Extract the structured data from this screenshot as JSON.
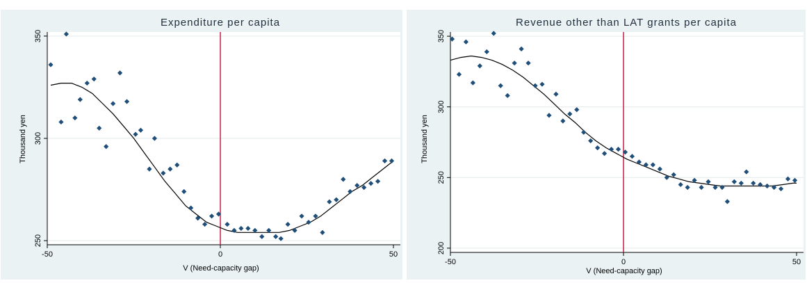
{
  "chart_data": [
    {
      "type": "scatter",
      "title": "Expenditure per capita",
      "xlabel": "V (Need-capacity gap)",
      "ylabel": "Thousand yen",
      "xlim": [
        -50,
        50
      ],
      "ylim": [
        248,
        352
      ],
      "xticks": [
        -50,
        0,
        50
      ],
      "yticks": [
        250,
        300,
        350
      ],
      "grid": true,
      "vertical_line_x": 0,
      "colors": {
        "points": "#1f4e79",
        "fit_line": "#000000",
        "vertical_line": "#c0103a",
        "background": "#eaf2f3"
      },
      "points": [
        {
          "x": -49,
          "y": 336
        },
        {
          "x": -46,
          "y": 308
        },
        {
          "x": -44.5,
          "y": 351
        },
        {
          "x": -42,
          "y": 310
        },
        {
          "x": -40.5,
          "y": 319
        },
        {
          "x": -38.5,
          "y": 327
        },
        {
          "x": -36.5,
          "y": 329
        },
        {
          "x": -35,
          "y": 305
        },
        {
          "x": -33,
          "y": 296
        },
        {
          "x": -31,
          "y": 317
        },
        {
          "x": -29,
          "y": 332
        },
        {
          "x": -27,
          "y": 318
        },
        {
          "x": -24.5,
          "y": 302
        },
        {
          "x": -23,
          "y": 304
        },
        {
          "x": -20.5,
          "y": 285
        },
        {
          "x": -19,
          "y": 300
        },
        {
          "x": -16.5,
          "y": 283
        },
        {
          "x": -14.5,
          "y": 285
        },
        {
          "x": -12.5,
          "y": 287
        },
        {
          "x": -10.5,
          "y": 274
        },
        {
          "x": -8.5,
          "y": 266
        },
        {
          "x": -6.5,
          "y": 261
        },
        {
          "x": -4.5,
          "y": 258
        },
        {
          "x": -2.5,
          "y": 262
        },
        {
          "x": -0.5,
          "y": 263
        },
        {
          "x": 2,
          "y": 258
        },
        {
          "x": 4,
          "y": 255
        },
        {
          "x": 6,
          "y": 256
        },
        {
          "x": 8,
          "y": 256
        },
        {
          "x": 10,
          "y": 255
        },
        {
          "x": 12,
          "y": 252
        },
        {
          "x": 14,
          "y": 255
        },
        {
          "x": 16,
          "y": 252
        },
        {
          "x": 17.5,
          "y": 251
        },
        {
          "x": 19.5,
          "y": 258
        },
        {
          "x": 21.5,
          "y": 255
        },
        {
          "x": 23.5,
          "y": 262
        },
        {
          "x": 25.5,
          "y": 259
        },
        {
          "x": 27.5,
          "y": 262
        },
        {
          "x": 29.5,
          "y": 254
        },
        {
          "x": 31.5,
          "y": 269
        },
        {
          "x": 33.5,
          "y": 270
        },
        {
          "x": 35.5,
          "y": 280
        },
        {
          "x": 37.5,
          "y": 274
        },
        {
          "x": 39.5,
          "y": 277
        },
        {
          "x": 41.5,
          "y": 276
        },
        {
          "x": 43.5,
          "y": 278
        },
        {
          "x": 45.5,
          "y": 279
        },
        {
          "x": 47.5,
          "y": 289
        },
        {
          "x": 49.5,
          "y": 289
        }
      ],
      "fit_line": [
        {
          "x": -49,
          "y": 326
        },
        {
          "x": -46,
          "y": 327
        },
        {
          "x": -43,
          "y": 327
        },
        {
          "x": -40,
          "y": 325
        },
        {
          "x": -37,
          "y": 322
        },
        {
          "x": -34,
          "y": 317
        },
        {
          "x": -31,
          "y": 312
        },
        {
          "x": -28,
          "y": 306
        },
        {
          "x": -25,
          "y": 300
        },
        {
          "x": -22,
          "y": 293
        },
        {
          "x": -19,
          "y": 286
        },
        {
          "x": -16,
          "y": 279
        },
        {
          "x": -13,
          "y": 273
        },
        {
          "x": -10,
          "y": 267
        },
        {
          "x": -7,
          "y": 263
        },
        {
          "x": -4,
          "y": 259
        },
        {
          "x": -1,
          "y": 257
        },
        {
          "x": 2,
          "y": 255
        },
        {
          "x": 5,
          "y": 254
        },
        {
          "x": 8,
          "y": 254
        },
        {
          "x": 11,
          "y": 254
        },
        {
          "x": 14,
          "y": 254
        },
        {
          "x": 17,
          "y": 254
        },
        {
          "x": 20,
          "y": 255
        },
        {
          "x": 23,
          "y": 257
        },
        {
          "x": 26,
          "y": 259
        },
        {
          "x": 29,
          "y": 262
        },
        {
          "x": 32,
          "y": 266
        },
        {
          "x": 35,
          "y": 270
        },
        {
          "x": 38,
          "y": 274
        },
        {
          "x": 41,
          "y": 277
        },
        {
          "x": 44,
          "y": 281
        },
        {
          "x": 47,
          "y": 285
        },
        {
          "x": 50,
          "y": 289
        }
      ]
    },
    {
      "type": "scatter",
      "title": "Revenue other than LAT grants per capita",
      "xlabel": "V (Need-capacity gap)",
      "ylabel": "Thousand yen",
      "xlim": [
        -50,
        50
      ],
      "ylim": [
        197,
        353
      ],
      "xticks": [
        -50,
        0,
        50
      ],
      "yticks": [
        200,
        250,
        300,
        350
      ],
      "grid": true,
      "vertical_line_x": 0,
      "colors": {
        "points": "#1f4e79",
        "fit_line": "#000000",
        "vertical_line": "#c0103a",
        "background": "#eaf2f3"
      },
      "points": [
        {
          "x": -49.5,
          "y": 348
        },
        {
          "x": -47.5,
          "y": 323
        },
        {
          "x": -45.5,
          "y": 346
        },
        {
          "x": -43.5,
          "y": 317
        },
        {
          "x": -41.5,
          "y": 329
        },
        {
          "x": -39.5,
          "y": 339
        },
        {
          "x": -37.5,
          "y": 352
        },
        {
          "x": -35.5,
          "y": 315
        },
        {
          "x": -33.5,
          "y": 308
        },
        {
          "x": -31.5,
          "y": 331
        },
        {
          "x": -29.5,
          "y": 341
        },
        {
          "x": -27.5,
          "y": 331
        },
        {
          "x": -25.5,
          "y": 315
        },
        {
          "x": -23.5,
          "y": 316
        },
        {
          "x": -21.5,
          "y": 294
        },
        {
          "x": -19.5,
          "y": 309
        },
        {
          "x": -17.5,
          "y": 290
        },
        {
          "x": -15.5,
          "y": 295
        },
        {
          "x": -13.5,
          "y": 298
        },
        {
          "x": -11.5,
          "y": 282
        },
        {
          "x": -9.5,
          "y": 276
        },
        {
          "x": -7.5,
          "y": 271
        },
        {
          "x": -5.5,
          "y": 267
        },
        {
          "x": -3.5,
          "y": 270
        },
        {
          "x": -1.5,
          "y": 270
        },
        {
          "x": 0.5,
          "y": 268
        },
        {
          "x": 2.5,
          "y": 265
        },
        {
          "x": 4.5,
          "y": 261
        },
        {
          "x": 6.5,
          "y": 259
        },
        {
          "x": 8.5,
          "y": 259
        },
        {
          "x": 10.5,
          "y": 256
        },
        {
          "x": 12.5,
          "y": 250
        },
        {
          "x": 14.5,
          "y": 252
        },
        {
          "x": 16.5,
          "y": 245
        },
        {
          "x": 18.5,
          "y": 243
        },
        {
          "x": 20.5,
          "y": 248
        },
        {
          "x": 22.5,
          "y": 243
        },
        {
          "x": 24.5,
          "y": 247
        },
        {
          "x": 26.5,
          "y": 243
        },
        {
          "x": 28.5,
          "y": 243
        },
        {
          "x": 30,
          "y": 233
        },
        {
          "x": 32,
          "y": 247
        },
        {
          "x": 34,
          "y": 246
        },
        {
          "x": 35.5,
          "y": 254
        },
        {
          "x": 37.5,
          "y": 246
        },
        {
          "x": 39.5,
          "y": 245
        },
        {
          "x": 41.5,
          "y": 244
        },
        {
          "x": 43.5,
          "y": 243
        },
        {
          "x": 45.5,
          "y": 242
        },
        {
          "x": 47.5,
          "y": 249
        },
        {
          "x": 49.5,
          "y": 248
        }
      ],
      "fit_line": [
        {
          "x": -50,
          "y": 333
        },
        {
          "x": -47,
          "y": 335
        },
        {
          "x": -44,
          "y": 336
        },
        {
          "x": -41,
          "y": 335
        },
        {
          "x": -38,
          "y": 333
        },
        {
          "x": -35,
          "y": 330
        },
        {
          "x": -32,
          "y": 326
        },
        {
          "x": -29,
          "y": 321
        },
        {
          "x": -26,
          "y": 315
        },
        {
          "x": -23,
          "y": 309
        },
        {
          "x": -20,
          "y": 302
        },
        {
          "x": -17,
          "y": 295
        },
        {
          "x": -14,
          "y": 289
        },
        {
          "x": -11,
          "y": 282
        },
        {
          "x": -8,
          "y": 276
        },
        {
          "x": -5,
          "y": 271
        },
        {
          "x": -2,
          "y": 267
        },
        {
          "x": 1,
          "y": 263
        },
        {
          "x": 4,
          "y": 260
        },
        {
          "x": 7,
          "y": 257
        },
        {
          "x": 10,
          "y": 254
        },
        {
          "x": 13,
          "y": 251
        },
        {
          "x": 16,
          "y": 249
        },
        {
          "x": 19,
          "y": 247
        },
        {
          "x": 22,
          "y": 246
        },
        {
          "x": 25,
          "y": 245
        },
        {
          "x": 28,
          "y": 244
        },
        {
          "x": 31,
          "y": 244
        },
        {
          "x": 34,
          "y": 244
        },
        {
          "x": 37,
          "y": 244
        },
        {
          "x": 40,
          "y": 244
        },
        {
          "x": 43,
          "y": 244
        },
        {
          "x": 46,
          "y": 245
        },
        {
          "x": 49,
          "y": 246
        },
        {
          "x": 50,
          "y": 246
        }
      ]
    }
  ]
}
